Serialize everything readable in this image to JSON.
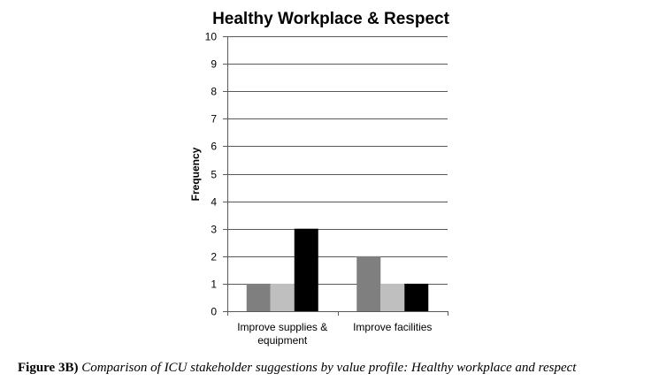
{
  "chart_data": {
    "type": "bar",
    "title": "Healthy Workplace & Respect",
    "xlabel": "",
    "ylabel": "Frequency",
    "ylim": [
      0,
      10
    ],
    "yticks": [
      0,
      1,
      2,
      3,
      4,
      5,
      6,
      7,
      8,
      9,
      10
    ],
    "categories": [
      [
        "Improve supplies &",
        "equipment"
      ],
      [
        "Improve facilities"
      ]
    ],
    "series": [
      {
        "color": "#7f7f7f",
        "values": [
          1,
          2
        ]
      },
      {
        "color": "#bfbfbf",
        "values": [
          1,
          1
        ]
      },
      {
        "color": "#000000",
        "values": [
          3,
          1
        ]
      }
    ],
    "grid": true,
    "legend": "none"
  },
  "caption": {
    "lead": "Figure 3B)",
    "text": "Comparison of ICU stakeholder suggestions by value profile: Healthy workplace and respect"
  }
}
